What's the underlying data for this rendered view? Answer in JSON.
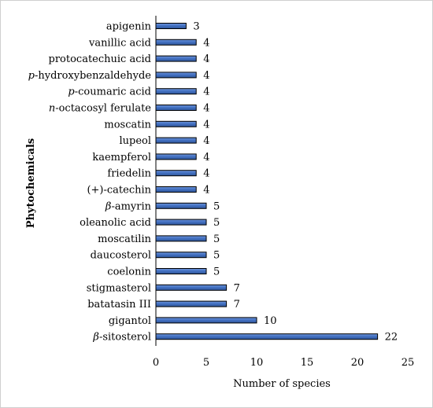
{
  "chart_data": {
    "type": "bar",
    "orientation": "horizontal",
    "categories": [
      "apigenin",
      "vanillic acid",
      "protocatechuic acid",
      "p-hydroxybenzaldehyde",
      "p-coumaric acid",
      "n-octacosyl ferulate",
      "moscatin",
      "lupeol",
      "kaempferol",
      "friedelin",
      "(+)-catechin",
      "β-amyrin",
      "oleanolic acid",
      "moscatilin",
      "daucosterol",
      "coelonin",
      "stigmasterol",
      "batatasin III",
      "gigantol",
      "β-sitosterol"
    ],
    "values": [
      3,
      4,
      4,
      4,
      4,
      4,
      4,
      4,
      4,
      4,
      4,
      5,
      5,
      5,
      5,
      5,
      7,
      7,
      10,
      22
    ],
    "xlabel": "Number of species",
    "ylabel": "Phytochemicals",
    "xlim": [
      0,
      25
    ],
    "xticks": [
      0,
      5,
      10,
      15,
      20,
      25
    ],
    "grid": false,
    "bar_color": "#4472C4",
    "bar_edge_color": "#000000"
  }
}
